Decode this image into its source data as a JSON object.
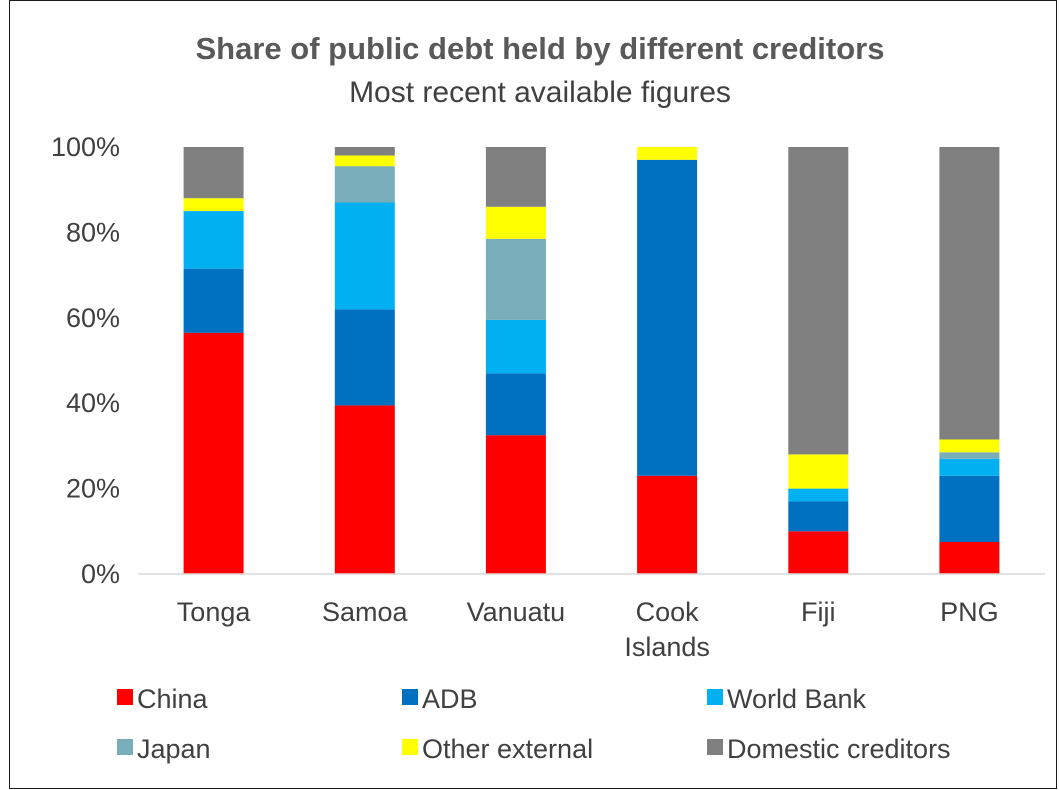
{
  "chart_data": {
    "type": "bar",
    "stacked": true,
    "title": "Share of public debt held by different creditors",
    "subtitle": "Most recent available figures",
    "categories": [
      [
        "Tonga"
      ],
      [
        "Samoa"
      ],
      [
        "Vanuatu"
      ],
      [
        "Cook",
        "Islands"
      ],
      [
        "Fiji"
      ],
      [
        "PNG"
      ]
    ],
    "ylim": [
      0,
      100
    ],
    "yticks": [
      "0%",
      "20%",
      "40%",
      "60%",
      "80%",
      "100%"
    ],
    "ytick_values": [
      0,
      20,
      40,
      60,
      80,
      100
    ],
    "grid": false,
    "legend_position": "bottom",
    "series": [
      {
        "name": "China",
        "color": "#ff0000",
        "values": [
          56.5,
          39.5,
          32.5,
          23,
          10,
          7.5
        ]
      },
      {
        "name": "ADB",
        "color": "#0070c0",
        "values": [
          15,
          22.5,
          14.5,
          74,
          7,
          15.5
        ]
      },
      {
        "name": "World Bank",
        "color": "#00b0f0",
        "values": [
          13.5,
          25,
          12.5,
          0,
          3,
          4
        ]
      },
      {
        "name": "Japan",
        "color": "#78adb9",
        "values": [
          0,
          8.5,
          19,
          0,
          0,
          1.5
        ]
      },
      {
        "name": "Other external",
        "color": "#ffff00",
        "values": [
          3,
          2.5,
          7.5,
          3,
          8,
          3
        ]
      },
      {
        "name": "Domestic creditors",
        "color": "#808080",
        "values": [
          12,
          2,
          14,
          0,
          72,
          68.5
        ]
      }
    ]
  }
}
